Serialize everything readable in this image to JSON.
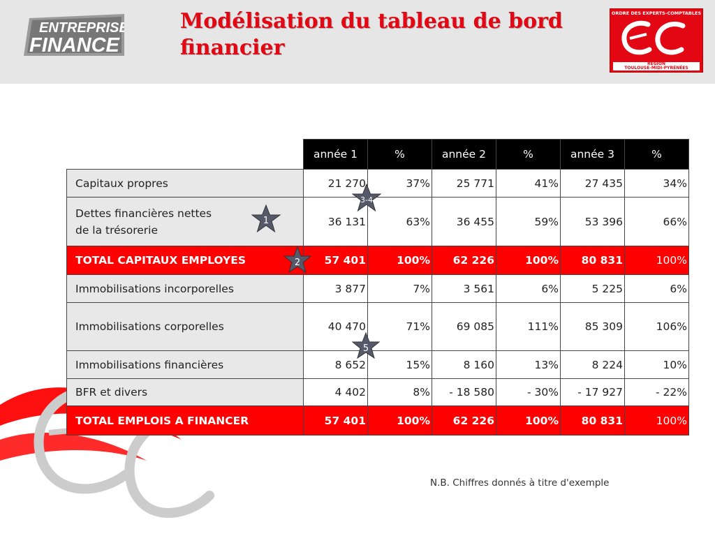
{
  "header": {
    "title": "Modélisation du tableau de bord financier",
    "logo_left": {
      "line1": "ENTREPRISE",
      "line2": "FINANCE"
    },
    "logo_right": {
      "top": "ORDRE DES EXPERTS-COMPTABLES",
      "bottom_line1": "RÉGION",
      "bottom_line2": "TOULOUSE-MIDI-PYRÉNÉES"
    }
  },
  "table": {
    "headers": [
      "année 1",
      "%",
      "année 2",
      "%",
      "année 3",
      "%"
    ],
    "rows": [
      {
        "label": "Capitaux propres",
        "values": [
          "21 270",
          "37%",
          "25 771",
          "41%",
          "27 435",
          "34%"
        ]
      },
      {
        "label_line1": "Dettes financières nettes",
        "label_line2": "de la trésorerie",
        "values": [
          "36 131",
          "63%",
          "36 455",
          "59%",
          "53 396",
          "66%"
        ]
      },
      {
        "label": "TOTAL CAPITAUX EMPLOYES",
        "values": [
          "57 401",
          "100%",
          "62 226",
          "100%",
          "80 831",
          "100%"
        ]
      },
      {
        "label": "Immobilisations incorporelles",
        "values": [
          "3 877",
          "7%",
          "3 561",
          "6%",
          "5 225",
          "6%"
        ]
      },
      {
        "label": "Immobilisations corporelles",
        "values": [
          "40 470",
          "71%",
          "69 085",
          "111%",
          "85 309",
          "106%"
        ]
      },
      {
        "label": "Immobilisations financières",
        "values": [
          "8 652",
          "15%",
          "8 160",
          "13%",
          "8 224",
          "10%"
        ]
      },
      {
        "label": "BFR et divers",
        "values": [
          "4 402",
          "8%",
          "- 18 580",
          "- 30%",
          "- 17 927",
          "- 22%"
        ]
      },
      {
        "label": "TOTAL EMPLOIS A FINANCER",
        "values": [
          "57 401",
          "100%",
          "62 226",
          "100%",
          "80 831",
          "100%"
        ]
      }
    ]
  },
  "stars": {
    "s1": "1",
    "s2": "2",
    "s34": "3-4",
    "s5": "5"
  },
  "footnote": "N.B. Chiffres donnés à titre d'exemple",
  "colors": {
    "brand_red": "#e30613",
    "total_row": "#ff0000",
    "header_bg": "#000000",
    "star": "#55596a"
  }
}
